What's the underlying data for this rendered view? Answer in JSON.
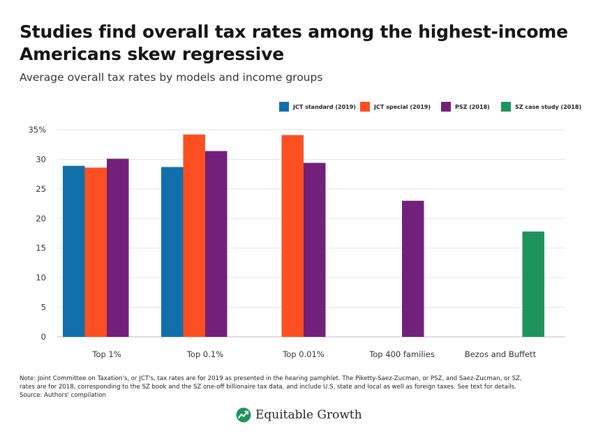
{
  "header": {
    "title": "Studies find overall tax rates among the highest-income Americans skew regressive",
    "subtitle": "Average overall tax rates by models and income groups"
  },
  "legend": [
    {
      "label": "JCT standard (2019)",
      "color": "#1170aa"
    },
    {
      "label": "JCT special (2019)",
      "color": "#fc5022"
    },
    {
      "label": "PSZ  (2018)",
      "color": "#722079"
    },
    {
      "label": "SZ case study (2018)",
      "color": "#1f935c"
    }
  ],
  "chart_data": {
    "type": "bar",
    "categories": [
      "Top 1%",
      "Top 0.1%",
      "Top 0.01%",
      "Top 400 families",
      "Bezos and Buffett"
    ],
    "series": [
      {
        "name": "JCT standard (2019)",
        "color": "#1170aa",
        "values": [
          28.9,
          28.7,
          null,
          null,
          null
        ]
      },
      {
        "name": "JCT special (2019)",
        "color": "#fc5022",
        "values": [
          28.6,
          34.2,
          34.1,
          null,
          null
        ]
      },
      {
        "name": "PSZ  (2018)",
        "color": "#722079",
        "values": [
          30.1,
          31.4,
          29.4,
          23.0,
          null
        ]
      },
      {
        "name": "SZ case study (2018)",
        "color": "#1f935c",
        "values": [
          null,
          null,
          null,
          null,
          17.8
        ]
      }
    ],
    "ylim": [
      0,
      35
    ],
    "yticks": [
      {
        "value": 0,
        "label": "0"
      },
      {
        "value": 5,
        "label": "5"
      },
      {
        "value": 10,
        "label": "10"
      },
      {
        "value": 15,
        "label": "15"
      },
      {
        "value": 20,
        "label": "20"
      },
      {
        "value": 25,
        "label": "25"
      },
      {
        "value": 30,
        "label": "30"
      },
      {
        "value": 35,
        "label": "35%"
      }
    ],
    "grid": true,
    "legend_position": "top-right"
  },
  "notes": {
    "lines": [
      "Note: Joint Committee on Taxation's, or JCT's, tax rates are for 2019 as presented in the hearing pamphlet. The Piketty-Saez-Zucman, or PSZ, and Saez-Zucman, or SZ,",
      "rates are for 2018, corresponding to the SZ book and the SZ one-off billionaire tax data, and include U.S. state and local as well as foreign taxes. See text for details.",
      "Source: Authors' compilation"
    ]
  },
  "brand": {
    "name": "Equitable Growth",
    "logo_icon": "growth-chart-leaf-icon",
    "logo_color": "#1f935c"
  }
}
